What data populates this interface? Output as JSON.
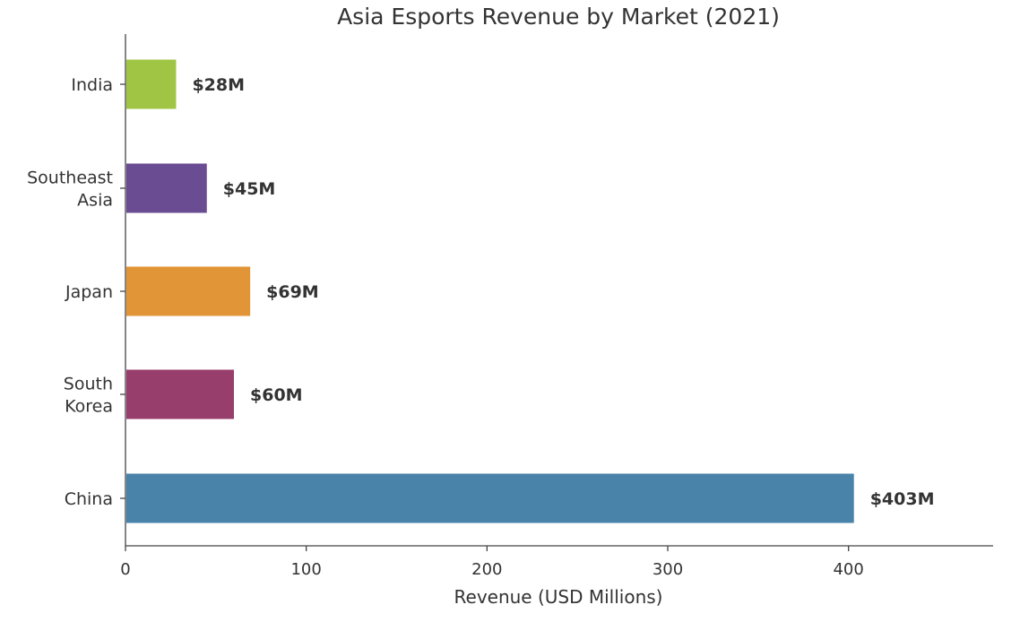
{
  "chart_data": {
    "type": "bar",
    "orientation": "horizontal",
    "title": "Asia Esports Revenue by Market (2021)",
    "xlabel": "Revenue (USD Millions)",
    "ylabel": "",
    "xlim": [
      0,
      480
    ],
    "xticks": [
      0,
      100,
      200,
      300,
      400
    ],
    "grid": false,
    "categories": [
      [
        "India"
      ],
      [
        "Southeast",
        "Asia"
      ],
      [
        "Japan"
      ],
      [
        "South",
        "Korea"
      ],
      [
        "China"
      ]
    ],
    "values": [
      28,
      45,
      69,
      60,
      403
    ],
    "value_labels": [
      "$28M",
      "$45M",
      "$69M",
      "$60M",
      "$403M"
    ],
    "colors": [
      "#a0c443",
      "#6a4c93",
      "#e29536",
      "#983e6c",
      "#4a83a9"
    ]
  }
}
